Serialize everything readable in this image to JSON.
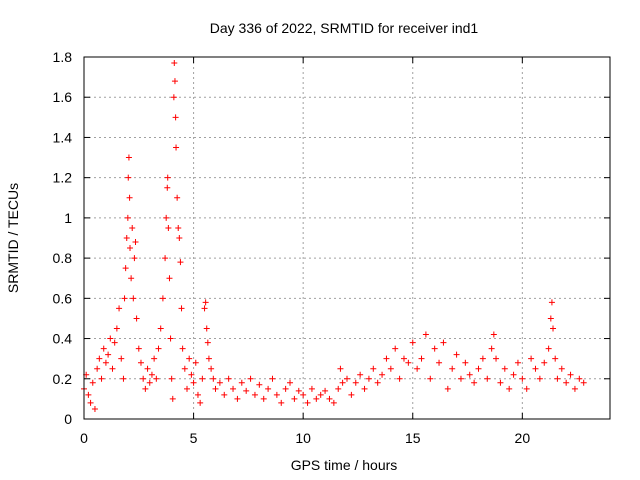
{
  "chart_data": {
    "type": "scatter",
    "title": "Day 336 of 2022, SRMTID for receiver ind1",
    "xlabel": "GPS time / hours",
    "ylabel": "SRMTID / TECUs",
    "xlim": [
      0,
      24
    ],
    "ylim": [
      0,
      1.8
    ],
    "xticks": [
      0,
      5,
      10,
      15,
      20
    ],
    "yticks": [
      0,
      0.2,
      0.4,
      0.6,
      0.8,
      1,
      1.2,
      1.4,
      1.6,
      1.8
    ],
    "xtick_labels": [
      "0",
      "5",
      "10",
      "15",
      "20"
    ],
    "ytick_labels": [
      "0",
      "0.2",
      "0.4",
      "0.6",
      "0.8",
      "1",
      "1.2",
      "1.4",
      "1.6",
      "1.8"
    ],
    "grid": true,
    "marker": "plus",
    "color": "#ff0000",
    "series": [
      {
        "name": "SRMTID",
        "points": [
          [
            0.0,
            0.15
          ],
          [
            0.1,
            0.22
          ],
          [
            0.2,
            0.12
          ],
          [
            0.3,
            0.08
          ],
          [
            0.4,
            0.18
          ],
          [
            0.5,
            0.05
          ],
          [
            0.6,
            0.25
          ],
          [
            0.7,
            0.3
          ],
          [
            0.8,
            0.2
          ],
          [
            0.9,
            0.35
          ],
          [
            1.0,
            0.28
          ],
          [
            1.1,
            0.32
          ],
          [
            1.2,
            0.4
          ],
          [
            1.3,
            0.25
          ],
          [
            1.4,
            0.38
          ],
          [
            1.5,
            0.45
          ],
          [
            1.6,
            0.55
          ],
          [
            1.7,
            0.3
          ],
          [
            1.8,
            0.2
          ],
          [
            1.85,
            0.6
          ],
          [
            1.9,
            0.75
          ],
          [
            1.95,
            0.9
          ],
          [
            2.0,
            1.0
          ],
          [
            2.02,
            1.2
          ],
          [
            2.05,
            1.3
          ],
          [
            2.08,
            1.1
          ],
          [
            2.1,
            0.85
          ],
          [
            2.15,
            0.7
          ],
          [
            2.2,
            0.95
          ],
          [
            2.25,
            0.6
          ],
          [
            2.3,
            0.8
          ],
          [
            2.35,
            0.88
          ],
          [
            2.4,
            0.5
          ],
          [
            2.5,
            0.35
          ],
          [
            2.6,
            0.28
          ],
          [
            2.7,
            0.2
          ],
          [
            2.8,
            0.15
          ],
          [
            2.9,
            0.25
          ],
          [
            3.0,
            0.18
          ],
          [
            3.1,
            0.22
          ],
          [
            3.2,
            0.3
          ],
          [
            3.3,
            0.2
          ],
          [
            3.4,
            0.35
          ],
          [
            3.5,
            0.45
          ],
          [
            3.6,
            0.6
          ],
          [
            3.7,
            0.8
          ],
          [
            3.75,
            1.0
          ],
          [
            3.8,
            1.15
          ],
          [
            3.82,
            1.2
          ],
          [
            3.85,
            0.95
          ],
          [
            3.9,
            0.7
          ],
          [
            3.95,
            0.4
          ],
          [
            4.0,
            0.2
          ],
          [
            4.05,
            0.1
          ],
          [
            4.1,
            1.6
          ],
          [
            4.12,
            1.77
          ],
          [
            4.15,
            1.68
          ],
          [
            4.18,
            1.5
          ],
          [
            4.2,
            1.35
          ],
          [
            4.25,
            1.1
          ],
          [
            4.3,
            0.95
          ],
          [
            4.35,
            0.9
          ],
          [
            4.4,
            0.78
          ],
          [
            4.45,
            0.55
          ],
          [
            4.5,
            0.35
          ],
          [
            4.6,
            0.25
          ],
          [
            4.7,
            0.15
          ],
          [
            4.8,
            0.3
          ],
          [
            4.9,
            0.22
          ],
          [
            5.0,
            0.18
          ],
          [
            5.1,
            0.28
          ],
          [
            5.2,
            0.12
          ],
          [
            5.3,
            0.08
          ],
          [
            5.4,
            0.2
          ],
          [
            5.5,
            0.55
          ],
          [
            5.55,
            0.58
          ],
          [
            5.6,
            0.45
          ],
          [
            5.65,
            0.38
          ],
          [
            5.7,
            0.3
          ],
          [
            5.8,
            0.25
          ],
          [
            5.9,
            0.2
          ],
          [
            6.0,
            0.15
          ],
          [
            6.2,
            0.18
          ],
          [
            6.4,
            0.12
          ],
          [
            6.6,
            0.2
          ],
          [
            6.8,
            0.15
          ],
          [
            7.0,
            0.1
          ],
          [
            7.2,
            0.18
          ],
          [
            7.4,
            0.14
          ],
          [
            7.6,
            0.2
          ],
          [
            7.8,
            0.12
          ],
          [
            8.0,
            0.17
          ],
          [
            8.2,
            0.1
          ],
          [
            8.4,
            0.15
          ],
          [
            8.6,
            0.2
          ],
          [
            8.8,
            0.12
          ],
          [
            9.0,
            0.08
          ],
          [
            9.2,
            0.15
          ],
          [
            9.4,
            0.18
          ],
          [
            9.6,
            0.1
          ],
          [
            9.8,
            0.14
          ],
          [
            10.0,
            0.12
          ],
          [
            10.2,
            0.08
          ],
          [
            10.4,
            0.15
          ],
          [
            10.6,
            0.1
          ],
          [
            10.8,
            0.12
          ],
          [
            11.0,
            0.14
          ],
          [
            11.2,
            0.1
          ],
          [
            11.4,
            0.08
          ],
          [
            11.6,
            0.15
          ],
          [
            11.7,
            0.25
          ],
          [
            11.8,
            0.18
          ],
          [
            12.0,
            0.2
          ],
          [
            12.2,
            0.12
          ],
          [
            12.4,
            0.18
          ],
          [
            12.6,
            0.22
          ],
          [
            12.8,
            0.15
          ],
          [
            13.0,
            0.2
          ],
          [
            13.2,
            0.25
          ],
          [
            13.4,
            0.18
          ],
          [
            13.6,
            0.22
          ],
          [
            13.8,
            0.3
          ],
          [
            14.0,
            0.25
          ],
          [
            14.2,
            0.35
          ],
          [
            14.4,
            0.2
          ],
          [
            14.6,
            0.3
          ],
          [
            14.8,
            0.28
          ],
          [
            15.0,
            0.38
          ],
          [
            15.2,
            0.25
          ],
          [
            15.4,
            0.3
          ],
          [
            15.6,
            0.42
          ],
          [
            15.8,
            0.2
          ],
          [
            16.0,
            0.35
          ],
          [
            16.2,
            0.28
          ],
          [
            16.4,
            0.38
          ],
          [
            16.6,
            0.15
          ],
          [
            16.8,
            0.25
          ],
          [
            17.0,
            0.32
          ],
          [
            17.2,
            0.2
          ],
          [
            17.4,
            0.28
          ],
          [
            17.6,
            0.22
          ],
          [
            17.8,
            0.18
          ],
          [
            18.0,
            0.25
          ],
          [
            18.2,
            0.3
          ],
          [
            18.4,
            0.2
          ],
          [
            18.6,
            0.35
          ],
          [
            18.7,
            0.42
          ],
          [
            18.8,
            0.3
          ],
          [
            19.0,
            0.18
          ],
          [
            19.2,
            0.25
          ],
          [
            19.4,
            0.15
          ],
          [
            19.6,
            0.22
          ],
          [
            19.8,
            0.28
          ],
          [
            20.0,
            0.2
          ],
          [
            20.2,
            0.15
          ],
          [
            20.4,
            0.3
          ],
          [
            20.6,
            0.25
          ],
          [
            20.8,
            0.2
          ],
          [
            21.0,
            0.28
          ],
          [
            21.2,
            0.35
          ],
          [
            21.3,
            0.5
          ],
          [
            21.35,
            0.58
          ],
          [
            21.4,
            0.45
          ],
          [
            21.5,
            0.3
          ],
          [
            21.6,
            0.2
          ],
          [
            21.8,
            0.25
          ],
          [
            22.0,
            0.18
          ],
          [
            22.2,
            0.22
          ],
          [
            22.4,
            0.15
          ],
          [
            22.6,
            0.2
          ],
          [
            22.8,
            0.18
          ]
        ]
      }
    ]
  }
}
